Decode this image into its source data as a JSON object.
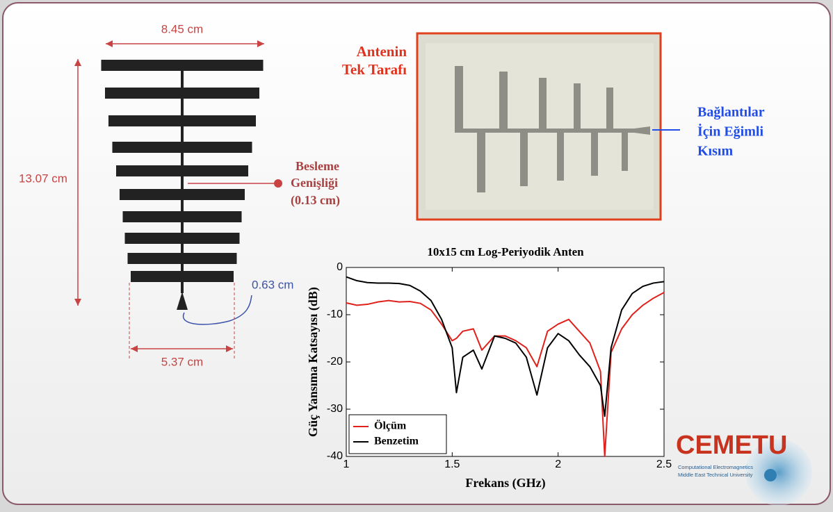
{
  "diagram": {
    "width_label": "8.45 cm",
    "height_label": "13.07 cm",
    "feed_label": [
      "Besleme",
      "Genişliği",
      "(0.13 cm)"
    ],
    "gap_label": "0.63 cm",
    "base_label": "5.37 cm"
  },
  "photo": {
    "side_label": [
      "Antenin",
      "Tek Tarafı"
    ],
    "taper_label": [
      "Bağlantılar",
      "İçin Eğimli",
      "Kısım"
    ]
  },
  "chart_data": {
    "type": "line",
    "title": "10x15 cm Log-Periyodik Anten",
    "x_label": "Frekans (GHz)",
    "y_label": "Güç Yansıma Katsayısı (dB)",
    "x": [
      1,
      1.05,
      1.1,
      1.15,
      1.2,
      1.25,
      1.3,
      1.35,
      1.4,
      1.45,
      1.5,
      1.52,
      1.55,
      1.6,
      1.64,
      1.7,
      1.75,
      1.8,
      1.85,
      1.9,
      1.95,
      2,
      2.05,
      2.1,
      2.15,
      2.2,
      2.22,
      2.25,
      2.3,
      2.35,
      2.4,
      2.45,
      2.5
    ],
    "series": [
      {
        "name": "Ölçüm",
        "color": "#e0201b",
        "values": [
          -7.5,
          -8,
          -7.8,
          -7.3,
          -7,
          -7.3,
          -7.2,
          -7.6,
          -9,
          -12,
          -15.5,
          -15,
          -13.5,
          -13,
          -17.5,
          -14.5,
          -14.5,
          -15.5,
          -17,
          -21,
          -13.5,
          -12,
          -11,
          -13.5,
          -16,
          -22,
          -40,
          -18,
          -13,
          -10,
          -8,
          -6.5,
          -5.3
        ]
      },
      {
        "name": "Benzetim",
        "color": "#000000",
        "values": [
          -2,
          -2.8,
          -3.2,
          -3.3,
          -3.3,
          -3.4,
          -3.8,
          -5,
          -7,
          -11,
          -17,
          -26.5,
          -19,
          -17.5,
          -21.5,
          -14.5,
          -15,
          -16,
          -19,
          -27,
          -17,
          -14,
          -15.5,
          -18.5,
          -21,
          -25,
          -31.5,
          -17,
          -9,
          -5.5,
          -4,
          -3.3,
          -3
        ]
      }
    ],
    "xlim": [
      1,
      2.5
    ],
    "ylim": [
      -40,
      0
    ],
    "xticks": [
      1,
      1.5,
      2,
      2.5
    ],
    "yticks": [
      -40,
      -30,
      -20,
      -10,
      0
    ],
    "legend": "lower left"
  },
  "logo": {
    "name": "CEMETU",
    "line1": "Computational Electromagnetics",
    "line2": "Middle East Technical University"
  }
}
